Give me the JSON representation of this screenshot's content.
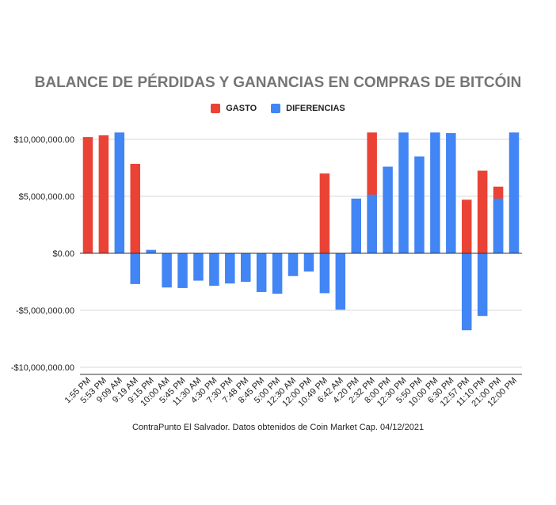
{
  "chart_data": {
    "type": "bar",
    "title": "BALANCE DE PÉRDIDAS Y GANANCIAS EN COMPRAS DE BITCÓIN",
    "caption": "ContraPunto El Salvador. Datos obtenidos de Coin Market Cap. 04/12/2021",
    "categories": [
      "1:55 PM",
      "5:53 PM",
      "9:09 AM",
      "9:19 AM",
      "9:15 PM",
      "10:00 AM",
      "5:45 PM",
      "11:30 AM",
      "4:30 PM",
      "7:30 PM",
      "7:48 PM",
      "8:45 PM",
      "5:00 PM",
      "12:30 AM",
      "12:00 PM",
      "10:49 PM",
      "6:42 AM",
      "4:20 PM",
      "2:32 PM",
      "8:00 PM",
      "12:30 PM",
      "5:50 PM",
      "10:00 PM",
      "6:30 PM",
      "12:57 PM",
      "11:10 PM",
      "21:00 PM",
      "12:00 PM"
    ],
    "series": [
      {
        "name": "GASTO",
        "color": "#ea4335",
        "values": [
          10200000,
          10350000,
          0,
          7850000,
          0,
          0,
          0,
          0,
          0,
          0,
          0,
          0,
          0,
          0,
          0,
          7000000,
          0,
          0,
          10600000,
          0,
          0,
          0,
          0,
          0,
          4700000,
          7250000,
          5850000,
          0
        ]
      },
      {
        "name": "DIFERENCIAS",
        "color": "#4285f4",
        "values": [
          0,
          0,
          10600000,
          -2700000,
          300000,
          -3000000,
          -3050000,
          -2400000,
          -2850000,
          -2650000,
          -2500000,
          -3400000,
          -3550000,
          -2000000,
          -1600000,
          -3500000,
          -4950000,
          4800000,
          5150000,
          7600000,
          10600000,
          8500000,
          10600000,
          10550000,
          -6750000,
          -5500000,
          4800000,
          10600000
        ]
      }
    ],
    "yticks": [
      {
        "value": 10000000,
        "label": "$10,000,000.00"
      },
      {
        "value": 5000000,
        "label": "$5,000,000.00"
      },
      {
        "value": 0,
        "label": "$0.00"
      },
      {
        "value": -5000000,
        "label": "-$5,000,000.00"
      },
      {
        "value": -10000000,
        "label": "-$10,000,000.00"
      }
    ],
    "ylim": [
      -10500000,
      10500000
    ],
    "xlabel": "",
    "ylabel": "",
    "grid": true,
    "legend_position": "top-center",
    "overlap": true
  }
}
